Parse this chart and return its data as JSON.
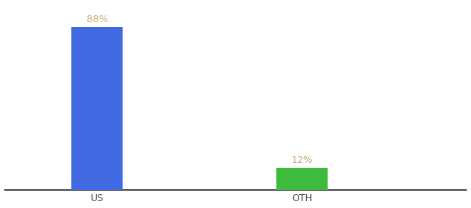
{
  "categories": [
    "US",
    "OTH"
  ],
  "values": [
    88,
    12
  ],
  "bar_colors": [
    "#4169e1",
    "#3dbb3d"
  ],
  "label_color": "#c8a97a",
  "label_fontsize": 10,
  "xlabel_fontsize": 10,
  "xlabel_color": "#555555",
  "background_color": "#ffffff",
  "ylim": [
    0,
    100
  ],
  "bar_width": 0.25,
  "x_positions": [
    1,
    2
  ],
  "xlim": [
    0.55,
    2.8
  ],
  "figsize": [
    6.8,
    3.0
  ],
  "dpi": 100
}
